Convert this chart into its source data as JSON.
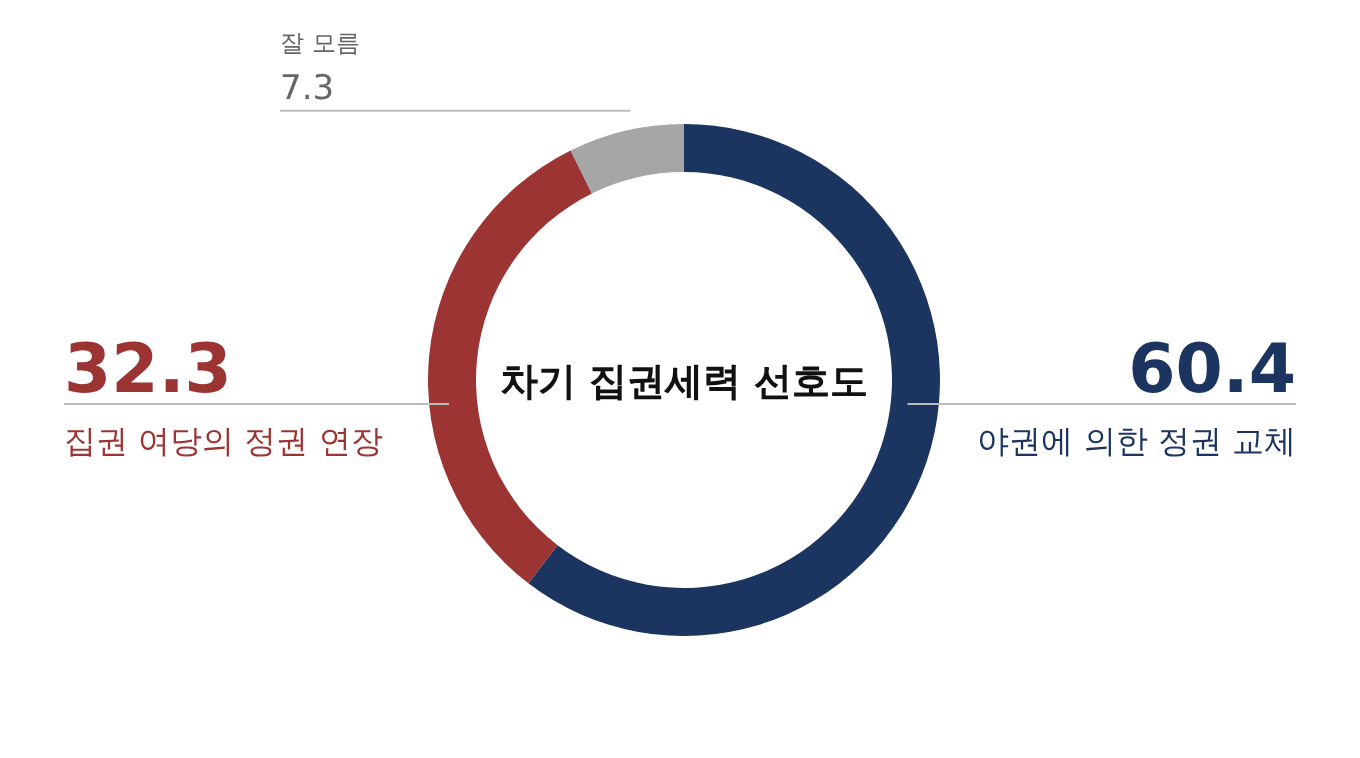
{
  "chart_data": {
    "type": "donut",
    "title": "차기 집권세력 선호도",
    "categories": [
      "야권에 의한 정권 교체",
      "집권 여당의 정권 연장",
      "잘 모름"
    ],
    "values": [
      60.4,
      32.3,
      7.3
    ],
    "colors": [
      "#1b3560",
      "#9c3433",
      "#a6a6a6"
    ],
    "data_labels": true
  }
}
